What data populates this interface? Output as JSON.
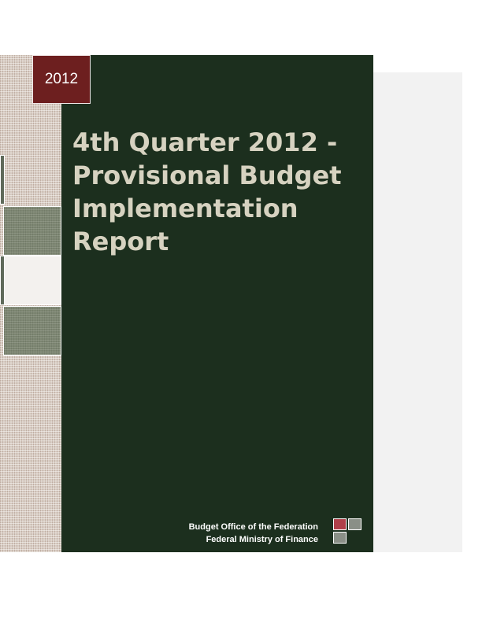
{
  "cover": {
    "year": "2012",
    "title_lines": [
      "4th Quarter 2012 -",
      "Provisional Budget",
      "Implementation",
      "Report"
    ],
    "publisher": {
      "line1": "Budget Office of the Federation",
      "line2": "Federal Ministry of Finance"
    }
  },
  "colors": {
    "main_panel": "#1c2f1e",
    "year_badge": "#6d1f1f",
    "title_text": "#d6d2c0",
    "logo_red": "#b0404a",
    "logo_grey": "#8a8f87"
  },
  "icons": {
    "logo": "three-square-logo-icon"
  }
}
